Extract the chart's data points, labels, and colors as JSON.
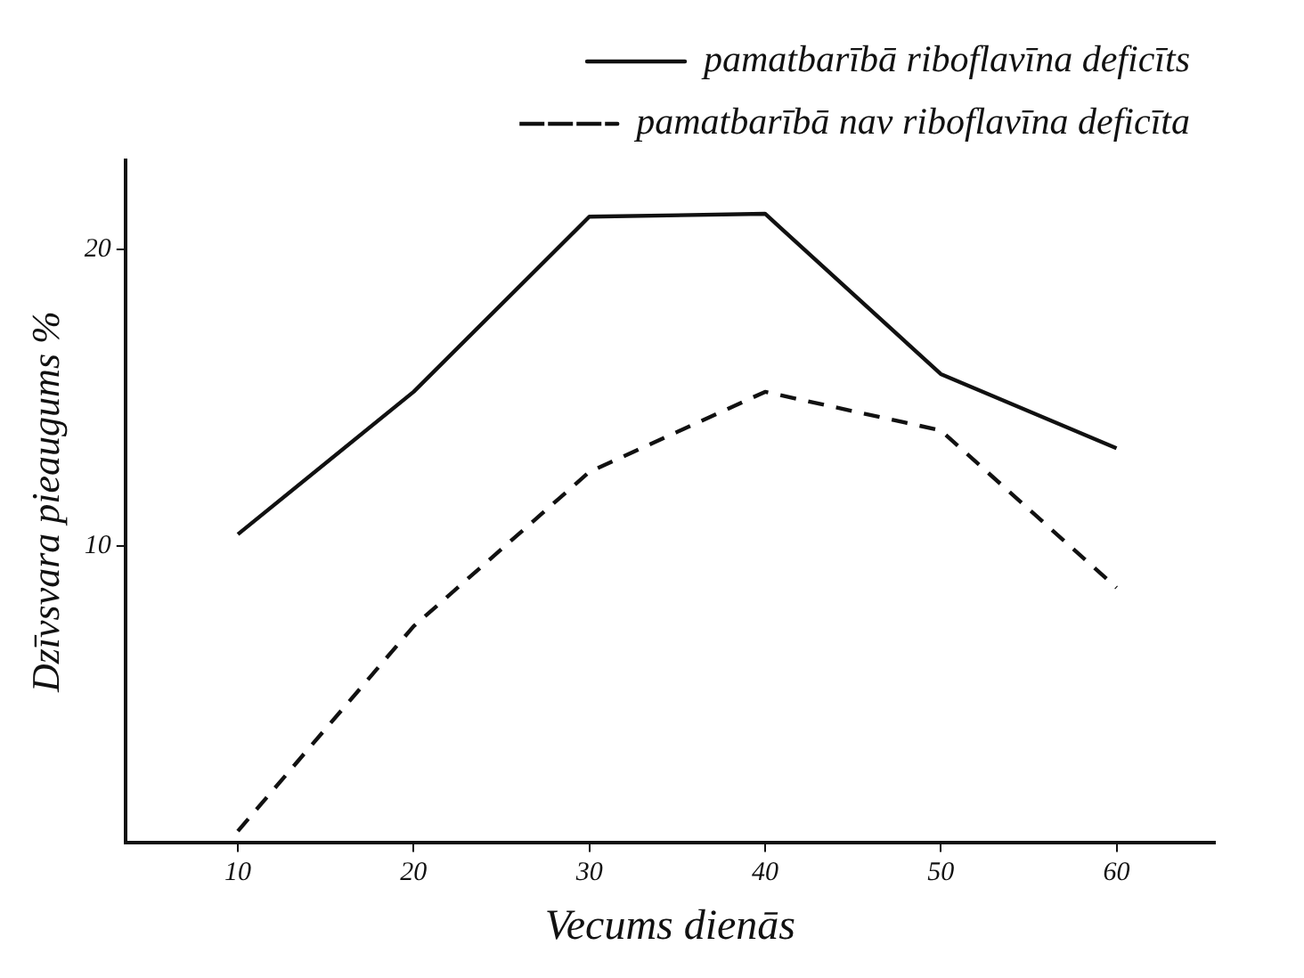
{
  "chart_data": {
    "type": "line",
    "xlabel": "Vecums dienās",
    "ylabel": "Dzīvsvara pieaugums %",
    "x": [
      10,
      20,
      30,
      40,
      50,
      60
    ],
    "series": [
      {
        "name": "pamatbarībā riboflavīna deficīts",
        "color": "#111111",
        "line_style": "solid",
        "values": [
          10.4,
          15.2,
          21.1,
          21.2,
          15.8,
          13.3
        ]
      },
      {
        "name": "pamatbarībā nav riboflavīna deficīta",
        "color": "#111111",
        "line_style": "dashed",
        "values": [
          0.4,
          7.3,
          12.5,
          15.2,
          13.9,
          8.6
        ]
      }
    ],
    "xlim": [
      3.6,
      65.6
    ],
    "xticks": [
      10,
      20,
      30,
      40,
      50,
      60
    ],
    "ylim": [
      0,
      23
    ],
    "yticks": [
      10,
      20
    ],
    "grid": false,
    "legend": "top right",
    "marker": "none"
  }
}
